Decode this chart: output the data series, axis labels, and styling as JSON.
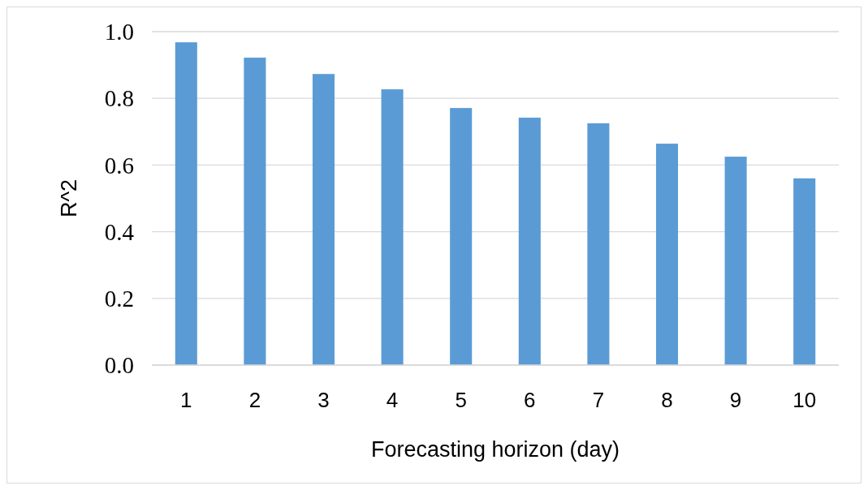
{
  "chart_data": {
    "type": "bar",
    "xlabel": "Forecasting horizon (day)",
    "ylabel": "R^2",
    "categories": [
      "1",
      "2",
      "3",
      "4",
      "5",
      "6",
      "7",
      "8",
      "9",
      "10"
    ],
    "values": [
      0.968,
      0.922,
      0.873,
      0.827,
      0.771,
      0.742,
      0.725,
      0.664,
      0.625,
      0.56
    ],
    "color": "#5b9bd5",
    "ylim": [
      0,
      1
    ],
    "yticks": [
      {
        "value": 0,
        "label": "0.0"
      },
      {
        "value": 0.2,
        "label": "0.2"
      },
      {
        "value": 0.4,
        "label": "0.4"
      },
      {
        "value": 0.6,
        "label": "0.6"
      },
      {
        "value": 0.8,
        "label": "0.8"
      },
      {
        "value": 1,
        "label": "1.0"
      }
    ],
    "grid": true
  }
}
